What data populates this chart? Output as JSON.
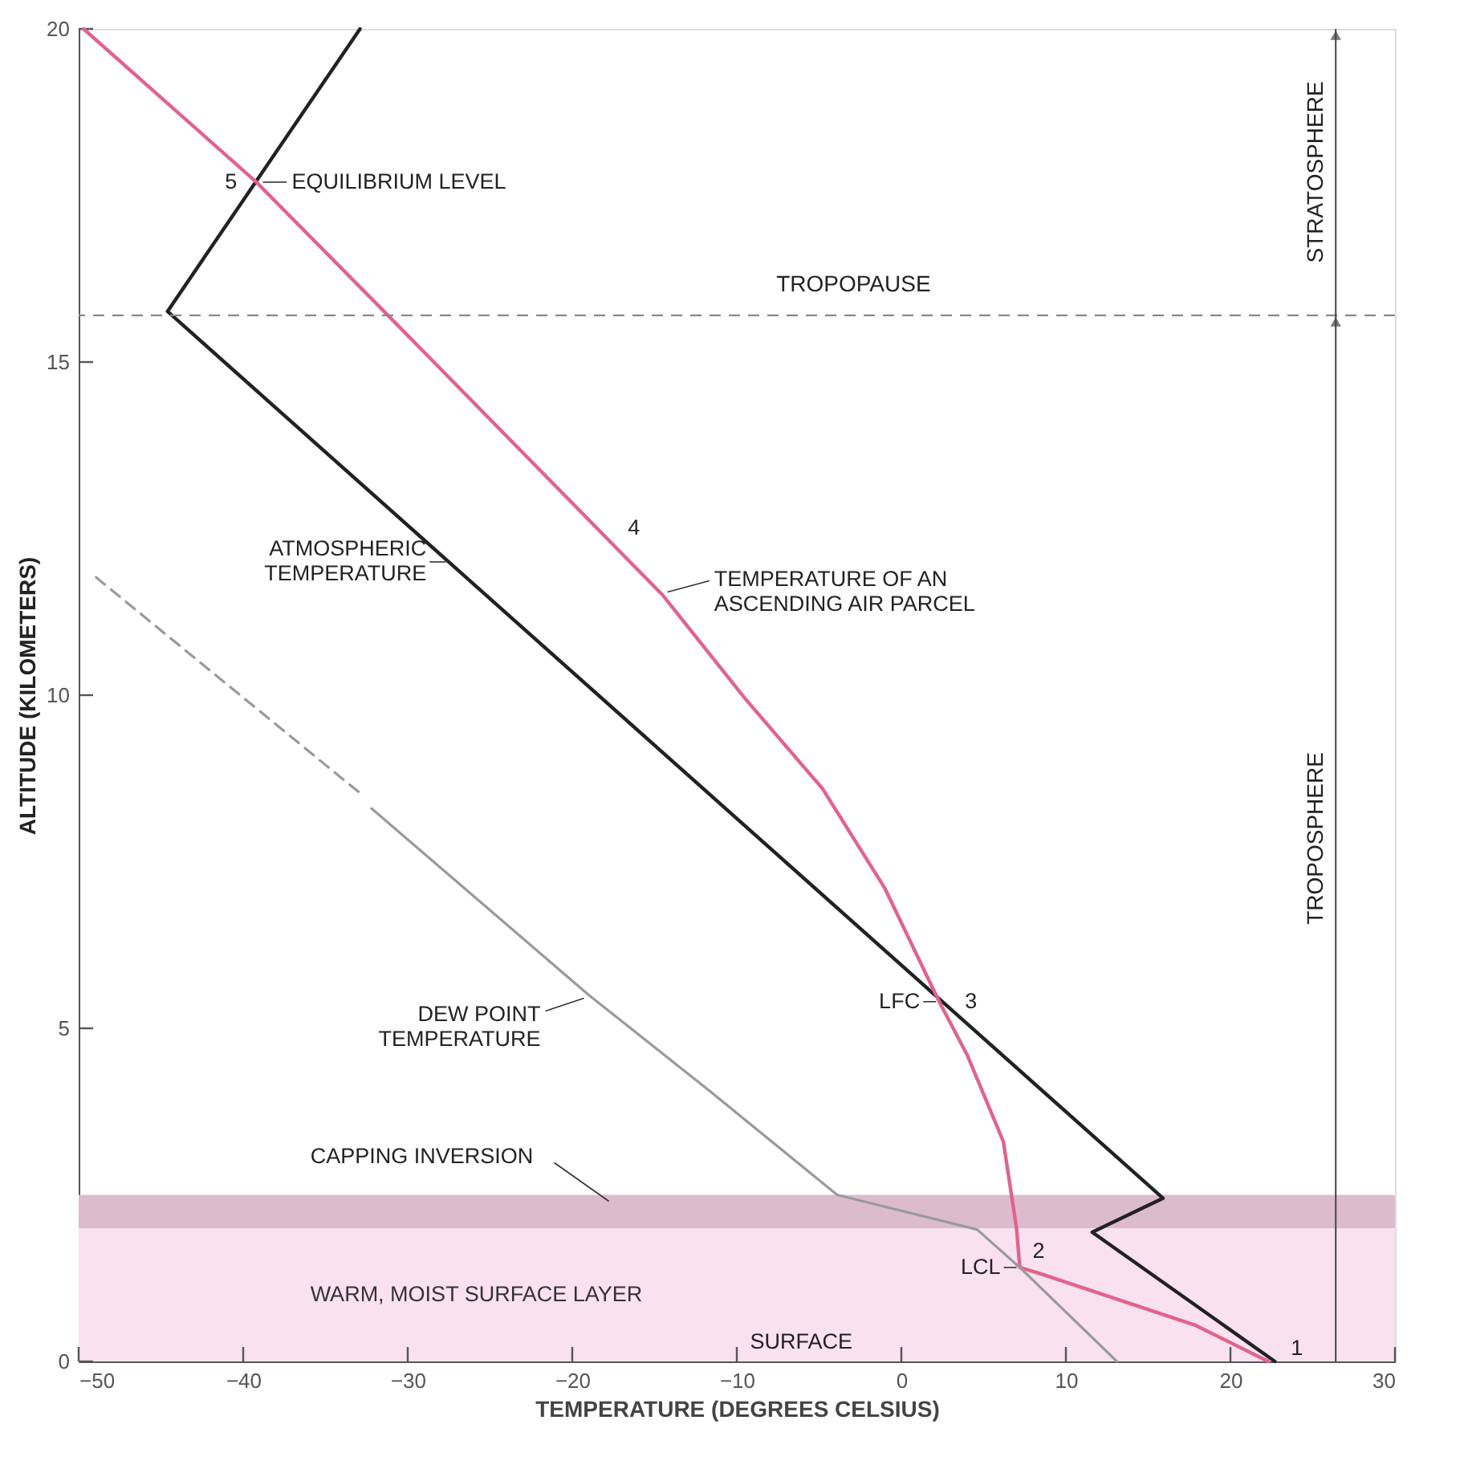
{
  "chart_data": {
    "type": "line",
    "xlabel": "TEMPERATURE (DEGREES CELSIUS)",
    "ylabel": "ALTITUDE (KILOMETERS)",
    "xlim": [
      -50,
      30
    ],
    "xticks": [
      -50,
      -40,
      -30,
      -20,
      -10,
      0,
      10,
      20,
      30
    ],
    "ylim": [
      0,
      20
    ],
    "yticks": [
      0,
      5,
      10,
      15,
      20
    ],
    "grid": false,
    "series": [
      {
        "color": "#222222",
        "line_style": "solid",
        "x": [
          22.7,
          11.6,
          15.9,
          -44.6,
          -32.9
        ],
        "values": [
          0,
          1.94,
          2.45,
          15.76,
          20
        ]
      },
      {
        "color": "#e0648c",
        "line_style": "solid",
        "x": [
          22.3,
          17.9,
          8.4,
          7.2,
          7.0,
          6.2,
          4.0,
          2.3,
          -1.0,
          -4.8,
          -9.5,
          -14.5,
          -31.2,
          -39.2,
          -49.7
        ],
        "values": [
          0,
          0.54,
          1.32,
          1.41,
          2.0,
          3.3,
          4.6,
          5.4,
          7.1,
          8.6,
          9.95,
          11.5,
          15.7,
          17.7,
          20
        ]
      },
      {
        "color": "#9a9a9a",
        "line_style": "solid",
        "x": [
          13.1,
          7.2,
          4.6,
          -3.9,
          -11.7,
          -19.0,
          -32.2
        ],
        "values": [
          0,
          1.41,
          1.98,
          2.5,
          4.07,
          5.5,
          8.3
        ]
      },
      {
        "color": "#9a9a9a",
        "line_style": "dashed",
        "x": [
          -33.0,
          -49.1
        ],
        "values": [
          8.55,
          11.8
        ]
      }
    ],
    "bands": [
      {
        "axis": "y",
        "from": 0,
        "to": 2.0,
        "color": "#f9e1ef",
        "label": "WARM, MOIST SURFACE LAYER"
      },
      {
        "axis": "y",
        "from": 2.0,
        "to": 2.5,
        "color": "#dcbccc",
        "label": "CAPPING INVERSION"
      }
    ],
    "ref_lines": [
      {
        "axis": "y",
        "value": 15.7,
        "label": "TROPOPAUSE",
        "color": "#888888",
        "line_style": "dashed"
      }
    ],
    "annotations": [
      {
        "text": "5",
        "x": -39.2,
        "y": 17.7
      },
      {
        "text": "EQUILIBRIUM LEVEL",
        "x": -39.2,
        "y": 17.7
      },
      {
        "text": "4",
        "x": -14.5,
        "y": 11.5
      },
      {
        "text": "ATMOSPHERIC\nTEMPERATURE",
        "x": -27.5,
        "y": 12.0
      },
      {
        "text": "TEMPERATURE OF AN\nASCENDING AIR PARCEL",
        "x": -14.5,
        "y": 11.5
      },
      {
        "text": "DEW POINT\nTEMPERATURE",
        "x": -19.0,
        "y": 5.5
      },
      {
        "text": "LFC",
        "x": 2.3,
        "y": 5.4
      },
      {
        "text": "3",
        "x": 2.3,
        "y": 5.4
      },
      {
        "text": "LCL",
        "x": 7.2,
        "y": 1.41
      },
      {
        "text": "2",
        "x": 7.2,
        "y": 1.41
      },
      "SURFACE",
      {
        "text": "1",
        "x": 22.3,
        "y": 0
      },
      "STRATOSPHERE",
      "TROPOSPHERE"
    ]
  }
}
